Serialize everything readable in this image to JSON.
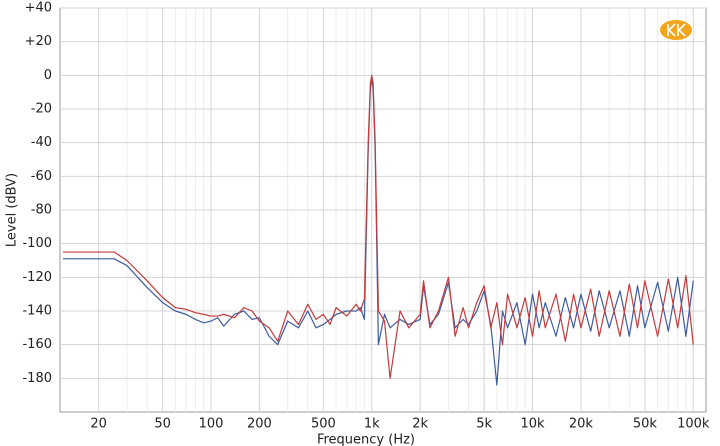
{
  "chart_data": {
    "type": "line",
    "x_label": "Frequency (Hz)",
    "y_label": "Level (dBV)",
    "xscale": "log",
    "grid": true,
    "xlim": [
      11.5,
      120000
    ],
    "ylim": [
      -200,
      40
    ],
    "xticks": [
      20,
      50,
      100,
      200,
      500,
      {
        "value": 1000,
        "label": "1k"
      },
      {
        "value": 2000,
        "label": "2k"
      },
      {
        "value": 5000,
        "label": "5k"
      },
      {
        "value": 10000,
        "label": "10k"
      },
      {
        "value": 20000,
        "label": "20k"
      },
      {
        "value": 50000,
        "label": "50k"
      },
      {
        "value": 100000,
        "label": "100k"
      }
    ],
    "x_minor_gridlines": [
      30,
      40,
      60,
      70,
      80,
      90,
      300,
      400,
      600,
      700,
      800,
      900,
      3000,
      4000,
      6000,
      7000,
      8000,
      9000,
      30000,
      40000,
      60000,
      70000,
      80000,
      90000
    ],
    "yticks": [
      {
        "value": 40,
        "label": "+40"
      },
      {
        "value": 20,
        "label": "+20"
      },
      0,
      -20,
      -40,
      -60,
      -80,
      -100,
      -120,
      -140,
      -160,
      -180
    ],
    "x": [
      12,
      15,
      20,
      25,
      30,
      40,
      50,
      60,
      70,
      80,
      90,
      100,
      110,
      120,
      140,
      160,
      180,
      200,
      230,
      260,
      300,
      350,
      400,
      450,
      500,
      550,
      600,
      700,
      800,
      850,
      900,
      950,
      980,
      1000,
      1020,
      1050,
      1100,
      1200,
      1300,
      1500,
      1700,
      2000,
      2100,
      2300,
      2600,
      3000,
      3300,
      3700,
      4000,
      4500,
      5000,
      5500,
      6000,
      6500,
      7000,
      8000,
      9000,
      10000,
      11000,
      12000,
      14000,
      16000,
      18000,
      20000,
      23000,
      26000,
      30000,
      35000,
      40000,
      45000,
      50000,
      60000,
      70000,
      80000,
      90000,
      100000
    ],
    "series": [
      {
        "color": "#3d5c9e",
        "values": [
          -109,
          -109,
          -109,
          -109,
          -113,
          -126,
          -135,
          -140,
          -142,
          -145,
          -147,
          -146,
          -144,
          -149,
          -142,
          -140,
          -145,
          -144,
          -155,
          -160,
          -146,
          -150,
          -140,
          -150,
          -148,
          -145,
          -142,
          -140,
          -140,
          -138,
          -145,
          -45,
          -8,
          -2,
          -8,
          -45,
          -160,
          -142,
          -150,
          -145,
          -148,
          -145,
          -125,
          -148,
          -142,
          -123,
          -150,
          -145,
          -148,
          -140,
          -128,
          -148,
          -184,
          -140,
          -150,
          -135,
          -160,
          -130,
          -150,
          -135,
          -155,
          -132,
          -150,
          -130,
          -152,
          -128,
          -150,
          -128,
          -155,
          -125,
          -150,
          -123,
          -152,
          -120,
          -155,
          -122
        ]
      },
      {
        "color": "#c43a3c",
        "values": [
          -105,
          -105,
          -105,
          -105,
          -110,
          -122,
          -132,
          -138,
          -139,
          -141,
          -142,
          -143,
          -143,
          -142,
          -144,
          -138,
          -140,
          -146,
          -150,
          -158,
          -140,
          -148,
          -136,
          -145,
          -142,
          -148,
          -138,
          -143,
          -136,
          -140,
          -133,
          -40,
          -5,
          0,
          -5,
          -40,
          -140,
          -146,
          -180,
          -140,
          -150,
          -142,
          -122,
          -150,
          -140,
          -120,
          -155,
          -138,
          -150,
          -135,
          -125,
          -150,
          -135,
          -160,
          -130,
          -150,
          -132,
          -155,
          -128,
          -150,
          -130,
          -158,
          -130,
          -150,
          -127,
          -155,
          -128,
          -155,
          -124,
          -150,
          -122,
          -155,
          -121,
          -150,
          -119,
          -160
        ]
      }
    ]
  }
}
